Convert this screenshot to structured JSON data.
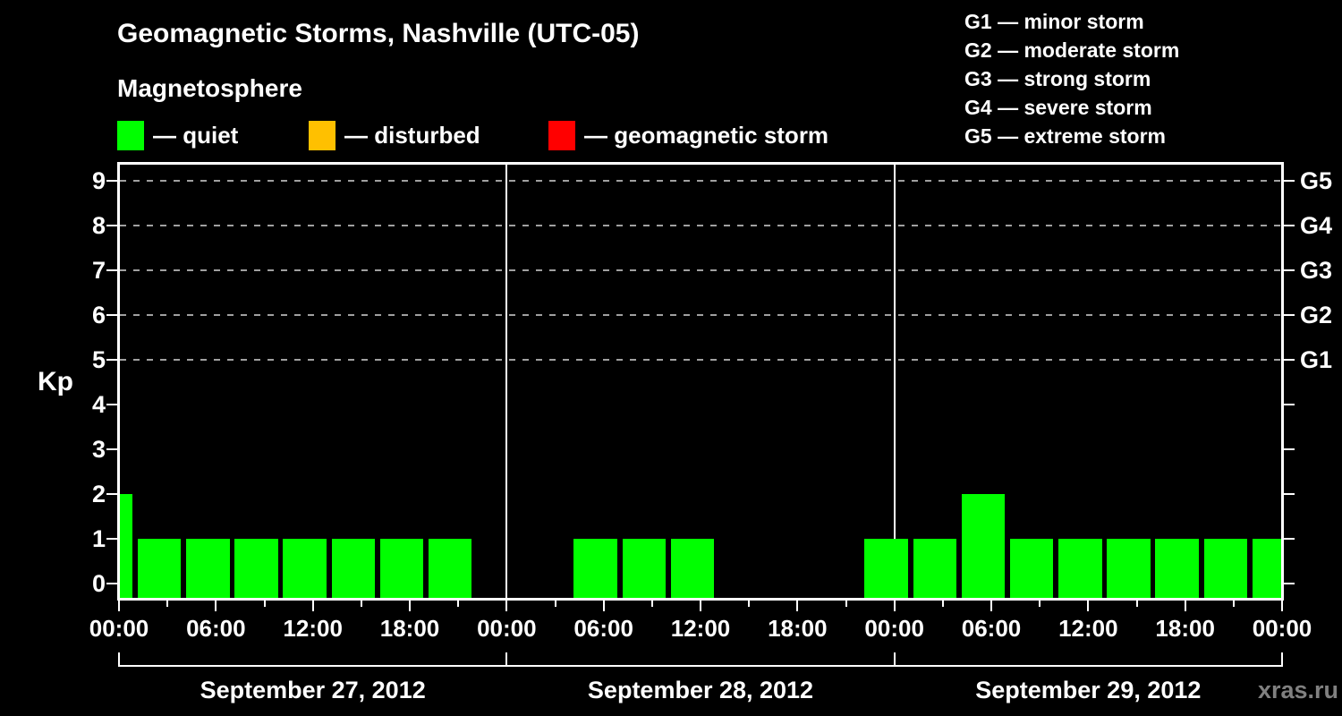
{
  "title": "Geomagnetic Storms, Nashville (UTC-05)",
  "subtitle": "Magnetosphere",
  "legend": {
    "items": [
      {
        "swatch_color": "#00ff00",
        "label": "— quiet"
      },
      {
        "swatch_color": "#ffc000",
        "label": "— disturbed"
      },
      {
        "swatch_color": "#ff0000",
        "label": "— geomagnetic storm"
      }
    ]
  },
  "g_scale_legend": [
    "G1 — minor storm",
    "G2 — moderate storm",
    "G3 — strong storm",
    "G4 — severe storm",
    "G5 — extreme storm"
  ],
  "watermark": "xras.ru",
  "colors": {
    "background": "#000000",
    "text": "#ffffff",
    "axis": "#ffffff",
    "gridline": "#a0a0a0",
    "bar_quiet": "#00ff00",
    "bar_disturbed": "#ffc000",
    "bar_storm": "#ff0000",
    "watermark": "#808080"
  },
  "chart_data": {
    "type": "bar",
    "title": "Geomagnetic Storms, Nashville (UTC-05)",
    "ylabel": "Kp",
    "ylim": [
      -0.35,
      9.4
    ],
    "y_ticks": [
      0,
      1,
      2,
      3,
      4,
      5,
      6,
      7,
      8,
      9
    ],
    "gridline_kp_levels": [
      5,
      6,
      7,
      8,
      9
    ],
    "right_axis_labels": [
      {
        "kp": 5,
        "label": "G1"
      },
      {
        "kp": 6,
        "label": "G2"
      },
      {
        "kp": 7,
        "label": "G3"
      },
      {
        "kp": 8,
        "label": "G4"
      },
      {
        "kp": 9,
        "label": "G5"
      }
    ],
    "x_axis": {
      "total_hours": 72,
      "major_ticks": [
        {
          "hour": 0,
          "label": "00:00"
        },
        {
          "hour": 6,
          "label": "06:00"
        },
        {
          "hour": 12,
          "label": "12:00"
        },
        {
          "hour": 18,
          "label": "18:00"
        },
        {
          "hour": 24,
          "label": "00:00"
        },
        {
          "hour": 30,
          "label": "06:00"
        },
        {
          "hour": 36,
          "label": "12:00"
        },
        {
          "hour": 42,
          "label": "18:00"
        },
        {
          "hour": 48,
          "label": "00:00"
        },
        {
          "hour": 54,
          "label": "06:00"
        },
        {
          "hour": 60,
          "label": "12:00"
        },
        {
          "hour": 66,
          "label": "18:00"
        },
        {
          "hour": 72,
          "label": "00:00"
        }
      ],
      "minor_tick_hours": [
        3,
        9,
        15,
        21,
        27,
        33,
        39,
        45,
        51,
        57,
        63,
        69
      ],
      "day_boundary_hours": [
        0,
        24,
        48,
        72
      ]
    },
    "days": [
      {
        "label": "September 27, 2012",
        "center_hour": 12
      },
      {
        "label": "September 28, 2012",
        "center_hour": 36
      },
      {
        "label": "September 29, 2012",
        "center_hour": 60
      }
    ],
    "bars": [
      {
        "start_hour": -2,
        "end_hour": 1,
        "kp": 2,
        "state": "quiet"
      },
      {
        "start_hour": 1,
        "end_hour": 4,
        "kp": 1,
        "state": "quiet"
      },
      {
        "start_hour": 4,
        "end_hour": 7,
        "kp": 1,
        "state": "quiet"
      },
      {
        "start_hour": 7,
        "end_hour": 10,
        "kp": 1,
        "state": "quiet"
      },
      {
        "start_hour": 10,
        "end_hour": 13,
        "kp": 1,
        "state": "quiet"
      },
      {
        "start_hour": 13,
        "end_hour": 16,
        "kp": 1,
        "state": "quiet"
      },
      {
        "start_hour": 16,
        "end_hour": 19,
        "kp": 1,
        "state": "quiet"
      },
      {
        "start_hour": 19,
        "end_hour": 22,
        "kp": 1,
        "state": "quiet"
      },
      {
        "start_hour": 28,
        "end_hour": 31,
        "kp": 1,
        "state": "quiet"
      },
      {
        "start_hour": 31,
        "end_hour": 34,
        "kp": 1,
        "state": "quiet"
      },
      {
        "start_hour": 34,
        "end_hour": 37,
        "kp": 1,
        "state": "quiet"
      },
      {
        "start_hour": 46,
        "end_hour": 49,
        "kp": 1,
        "state": "quiet"
      },
      {
        "start_hour": 49,
        "end_hour": 52,
        "kp": 1,
        "state": "quiet"
      },
      {
        "start_hour": 52,
        "end_hour": 55,
        "kp": 2,
        "state": "quiet"
      },
      {
        "start_hour": 55,
        "end_hour": 58,
        "kp": 1,
        "state": "quiet"
      },
      {
        "start_hour": 58,
        "end_hour": 61,
        "kp": 1,
        "state": "quiet"
      },
      {
        "start_hour": 61,
        "end_hour": 64,
        "kp": 1,
        "state": "quiet"
      },
      {
        "start_hour": 64,
        "end_hour": 67,
        "kp": 1,
        "state": "quiet"
      },
      {
        "start_hour": 67,
        "end_hour": 70,
        "kp": 1,
        "state": "quiet"
      },
      {
        "start_hour": 70,
        "end_hour": 73,
        "kp": 1,
        "state": "quiet"
      }
    ]
  }
}
